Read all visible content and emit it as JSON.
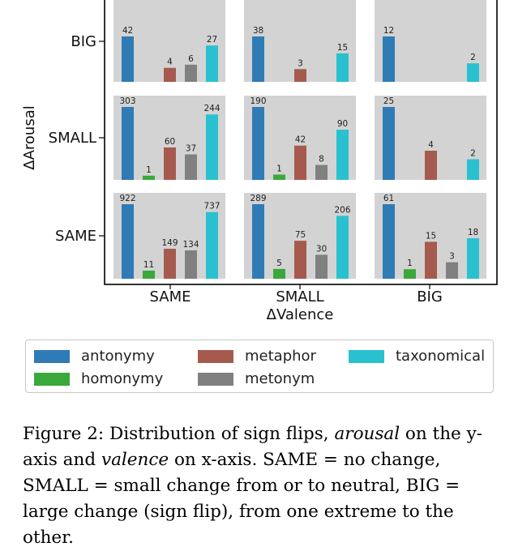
{
  "chart_data": {
    "type": "bar",
    "xlabel": "ΔValence",
    "ylabel": "ΔArousal",
    "x_categories": [
      "SAME",
      "SMALL",
      "BIG"
    ],
    "y_categories": [
      "BIG",
      "SMALL",
      "SAME"
    ],
    "series_names": [
      "antonymy",
      "homonymy",
      "metaphor",
      "metonym",
      "taxonomical"
    ],
    "colors": {
      "antonymy": "#2f7bb6",
      "homonymy": "#3aa83a",
      "metaphor": "#a65a4e",
      "metonym": "#808080",
      "taxonomical": "#29c1cf"
    },
    "panel_background": "#d3d3d3",
    "cells": [
      {
        "arousal": "BIG",
        "valence": "SAME",
        "values": {
          "antonymy": 42,
          "homonymy": 0,
          "metaphor": 4,
          "metonym": 6,
          "taxonomical": 27
        }
      },
      {
        "arousal": "BIG",
        "valence": "SMALL",
        "values": {
          "antonymy": 38,
          "homonymy": 0,
          "metaphor": 3,
          "metonym": 0,
          "taxonomical": 15
        }
      },
      {
        "arousal": "BIG",
        "valence": "BIG",
        "values": {
          "antonymy": 12,
          "homonymy": 0,
          "metaphor": 0,
          "metonym": 0,
          "taxonomical": 2
        }
      },
      {
        "arousal": "SMALL",
        "valence": "SAME",
        "values": {
          "antonymy": 303,
          "homonymy": 1,
          "metaphor": 60,
          "metonym": 37,
          "taxonomical": 244
        }
      },
      {
        "arousal": "SMALL",
        "valence": "SMALL",
        "values": {
          "antonymy": 190,
          "homonymy": 1,
          "metaphor": 42,
          "metonym": 8,
          "taxonomical": 90
        }
      },
      {
        "arousal": "SMALL",
        "valence": "BIG",
        "values": {
          "antonymy": 25,
          "homonymy": 0,
          "metaphor": 4,
          "metonym": 0,
          "taxonomical": 2
        }
      },
      {
        "arousal": "SAME",
        "valence": "SAME",
        "values": {
          "antonymy": 922,
          "homonymy": 11,
          "metaphor": 149,
          "metonym": 134,
          "taxonomical": 737
        }
      },
      {
        "arousal": "SAME",
        "valence": "SMALL",
        "values": {
          "antonymy": 289,
          "homonymy": 5,
          "metaphor": 75,
          "metonym": 30,
          "taxonomical": 206
        }
      },
      {
        "arousal": "SAME",
        "valence": "BIG",
        "values": {
          "antonymy": 61,
          "homonymy": 1,
          "metaphor": 15,
          "metonym": 3,
          "taxonomical": 18
        }
      }
    ]
  },
  "legend": [
    {
      "label": "antonymy",
      "color": "#2f7bb6"
    },
    {
      "label": "metaphor",
      "color": "#a65a4e"
    },
    {
      "label": "taxonomical",
      "color": "#29c1cf"
    },
    {
      "label": "homonymy",
      "color": "#3aa83a"
    },
    {
      "label": "metonym",
      "color": "#808080"
    }
  ],
  "caption": {
    "prefix": "Figure 2: Distribution of sign flips, ",
    "arousal": "arousal",
    "middle": " on the y-axis and ",
    "valence": "valence",
    "suffix": " on x-axis.  SAME = no change, SMALL = small change from or to neutral, BIG = large change (sign flip), from one extreme to the other."
  }
}
